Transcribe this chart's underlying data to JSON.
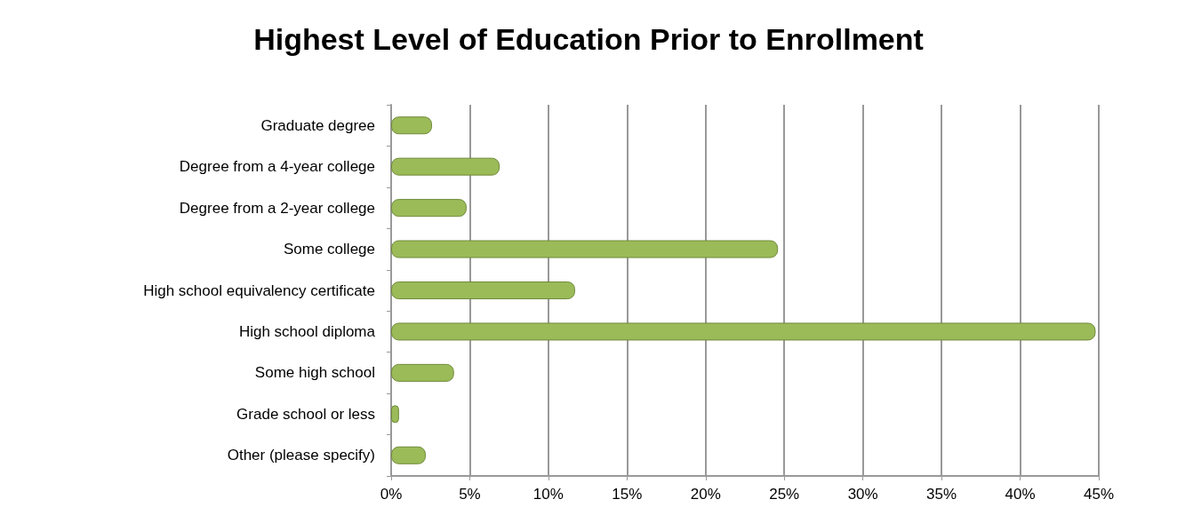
{
  "chart_data": {
    "type": "bar",
    "orientation": "horizontal",
    "title": "Highest Level of Education Prior to Enrollment",
    "categories": [
      "Graduate degree",
      "Degree from a 4-year college",
      "Degree from a 2-year college",
      "Some college",
      "High school equivalency certificate",
      "High school diploma",
      "Some high school",
      "Grade school or less",
      "Other (please specify)"
    ],
    "values": [
      2.6,
      6.9,
      4.8,
      24.6,
      11.7,
      44.8,
      4.0,
      0.5,
      2.2
    ],
    "color": "#9bbb59",
    "xlim": [
      0,
      45
    ],
    "xticks": [
      {
        "value": 0,
        "label": "0%"
      },
      {
        "value": 5,
        "label": "5%"
      },
      {
        "value": 10,
        "label": "10%"
      },
      {
        "value": 15,
        "label": "15%"
      },
      {
        "value": 20,
        "label": "20%"
      },
      {
        "value": 25,
        "label": "25%"
      },
      {
        "value": 30,
        "label": "30%"
      },
      {
        "value": 35,
        "label": "35%"
      },
      {
        "value": 40,
        "label": "40%"
      },
      {
        "value": 45,
        "label": "45%"
      }
    ],
    "grid": "x"
  }
}
